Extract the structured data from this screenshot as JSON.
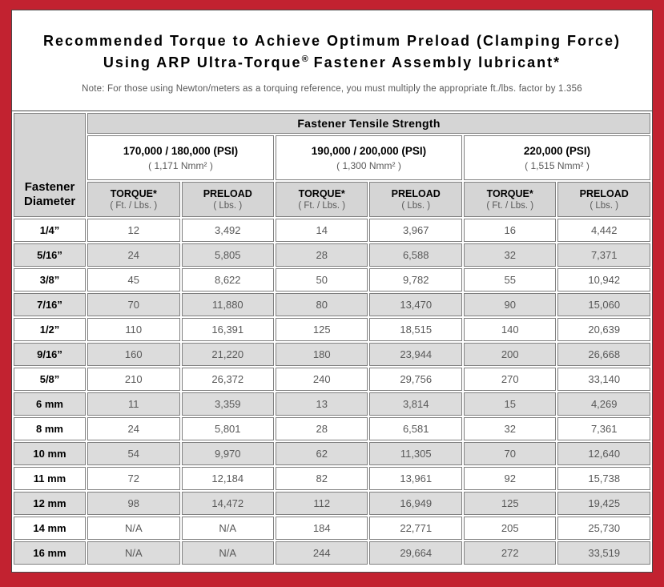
{
  "page": {
    "title_line1": "Recommended Torque to Achieve Optimum Preload (Clamping Force)",
    "title_line2_prefix": "Using ARP Ultra-Torque",
    "title_line2_reg": "®",
    "title_line2_suffix": " Fastener Assembly lubricant*",
    "note": "Note: For those using Newton/meters as a torquing reference, you must multiply the appropriate ft./lbs. factor by 1.356"
  },
  "colors": {
    "frame_red": "#c22230",
    "header_gray": "#d5d5d5",
    "shaded_row_gray": "#dcdcdc",
    "grid_line": "#7f7f7f",
    "muted_text": "#595959"
  },
  "table": {
    "diameter_header": "Fastener Diameter",
    "tensile_header": "Fastener Tensile Strength",
    "torque_label": "TORQUE*",
    "torque_unit": "( Ft. / Lbs. )",
    "preload_label": "PRELOAD",
    "preload_unit": "( Lbs. )",
    "groups": [
      {
        "psi": "170,000 / 180,000 (PSI)",
        "nmm": "( 1,171 Nmm² )"
      },
      {
        "psi": "190,000 / 200,000 (PSI)",
        "nmm": "( 1,300 Nmm² )"
      },
      {
        "psi": "220,000 (PSI)",
        "nmm": "( 1,515 Nmm² )"
      }
    ],
    "rows": [
      {
        "diameter": "1/4”",
        "values": [
          "12",
          "3,492",
          "14",
          "3,967",
          "16",
          "4,442"
        ]
      },
      {
        "diameter": "5/16”",
        "values": [
          "24",
          "5,805",
          "28",
          "6,588",
          "32",
          "7,371"
        ]
      },
      {
        "diameter": "3/8”",
        "values": [
          "45",
          "8,622",
          "50",
          "9,782",
          "55",
          "10,942"
        ]
      },
      {
        "diameter": "7/16”",
        "values": [
          "70",
          "11,880",
          "80",
          "13,470",
          "90",
          "15,060"
        ]
      },
      {
        "diameter": "1/2”",
        "values": [
          "110",
          "16,391",
          "125",
          "18,515",
          "140",
          "20,639"
        ]
      },
      {
        "diameter": "9/16”",
        "values": [
          "160",
          "21,220",
          "180",
          "23,944",
          "200",
          "26,668"
        ]
      },
      {
        "diameter": "5/8”",
        "values": [
          "210",
          "26,372",
          "240",
          "29,756",
          "270",
          "33,140"
        ]
      },
      {
        "diameter": "6 mm",
        "values": [
          "11",
          "3,359",
          "13",
          "3,814",
          "15",
          "4,269"
        ]
      },
      {
        "diameter": "8 mm",
        "values": [
          "24",
          "5,801",
          "28",
          "6,581",
          "32",
          "7,361"
        ]
      },
      {
        "diameter": "10 mm",
        "values": [
          "54",
          "9,970",
          "62",
          "11,305",
          "70",
          "12,640"
        ]
      },
      {
        "diameter": "11 mm",
        "values": [
          "72",
          "12,184",
          "82",
          "13,961",
          "92",
          "15,738"
        ]
      },
      {
        "diameter": "12 mm",
        "values": [
          "98",
          "14,472",
          "112",
          "16,949",
          "125",
          "19,425"
        ]
      },
      {
        "diameter": "14 mm",
        "values": [
          "N/A",
          "N/A",
          "184",
          "22,771",
          "205",
          "25,730"
        ]
      },
      {
        "diameter": "16 mm",
        "values": [
          "N/A",
          "N/A",
          "244",
          "29,664",
          "272",
          "33,519"
        ]
      }
    ]
  }
}
